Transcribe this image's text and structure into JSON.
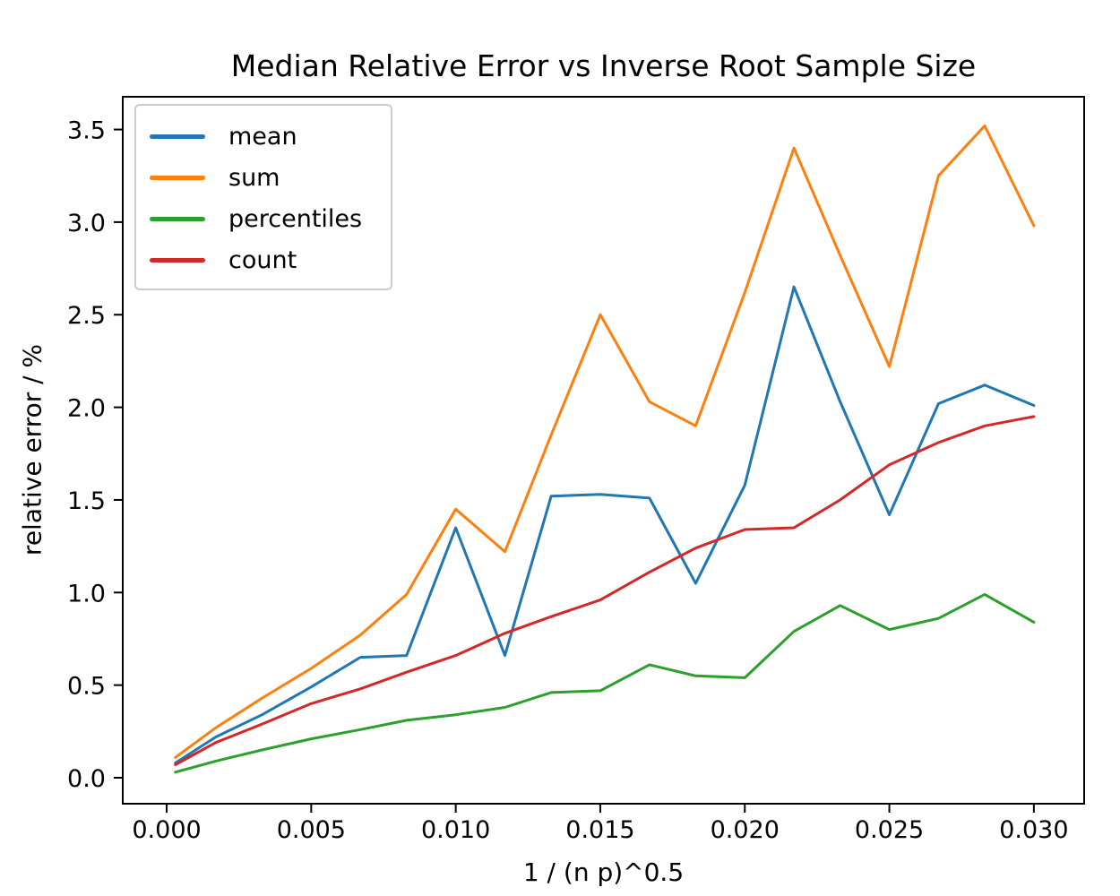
{
  "figure": {
    "background": "#ffffff",
    "spine_color": "#000000",
    "legend_border_color": "#cccccc"
  },
  "chart_data": {
    "type": "line",
    "title": "Median Relative Error vs Inverse Root Sample Size",
    "xlabel": "1 / (n p)^0.5",
    "ylabel": "relative error / %",
    "grid": false,
    "legend_position": "upper left",
    "xlim": [
      -0.00152,
      0.03174
    ],
    "ylim": [
      -0.1403,
      3.6768
    ],
    "xticks": [
      {
        "value": 0.0,
        "label": "0.000"
      },
      {
        "value": 0.005,
        "label": "0.005"
      },
      {
        "value": 0.01,
        "label": "0.010"
      },
      {
        "value": 0.015,
        "label": "0.015"
      },
      {
        "value": 0.02,
        "label": "0.020"
      },
      {
        "value": 0.025,
        "label": "0.025"
      },
      {
        "value": 0.03,
        "label": "0.030"
      }
    ],
    "yticks": [
      {
        "value": 0.0,
        "label": "0.0"
      },
      {
        "value": 0.5,
        "label": "0.5"
      },
      {
        "value": 1.0,
        "label": "1.0"
      },
      {
        "value": 1.5,
        "label": "1.5"
      },
      {
        "value": 2.0,
        "label": "2.0"
      },
      {
        "value": 2.5,
        "label": "2.5"
      },
      {
        "value": 3.0,
        "label": "3.0"
      },
      {
        "value": 3.5,
        "label": "3.5"
      }
    ],
    "x": [
      0.0003,
      0.0017,
      0.0033,
      0.005,
      0.0067,
      0.0083,
      0.01,
      0.0117,
      0.0133,
      0.015,
      0.0167,
      0.0183,
      0.02,
      0.0217,
      0.0233,
      0.025,
      0.0267,
      0.0283,
      0.03
    ],
    "series": [
      {
        "name": "mean",
        "color": "#1f77b4",
        "values": [
          0.08,
          0.22,
          0.34,
          0.49,
          0.65,
          0.66,
          1.35,
          0.66,
          1.52,
          1.53,
          1.51,
          1.05,
          1.58,
          2.65,
          2.03,
          1.42,
          2.02,
          2.12,
          2.01
        ]
      },
      {
        "name": "sum",
        "color": "#ff7f0e",
        "values": [
          0.11,
          0.27,
          0.43,
          0.59,
          0.77,
          0.99,
          1.45,
          1.22,
          1.85,
          2.5,
          2.03,
          1.9,
          2.62,
          3.4,
          2.82,
          2.22,
          3.25,
          3.52,
          2.98
        ]
      },
      {
        "name": "percentiles",
        "color": "#2ca02c",
        "values": [
          0.03,
          0.09,
          0.15,
          0.21,
          0.26,
          0.31,
          0.34,
          0.38,
          0.46,
          0.47,
          0.61,
          0.55,
          0.54,
          0.79,
          0.93,
          0.8,
          0.86,
          0.99,
          0.84
        ]
      },
      {
        "name": "count",
        "color": "#d62728",
        "values": [
          0.07,
          0.19,
          0.29,
          0.4,
          0.48,
          0.57,
          0.66,
          0.78,
          0.87,
          0.96,
          1.11,
          1.24,
          1.34,
          1.35,
          1.5,
          1.69,
          1.81,
          1.9,
          1.95
        ]
      }
    ]
  }
}
